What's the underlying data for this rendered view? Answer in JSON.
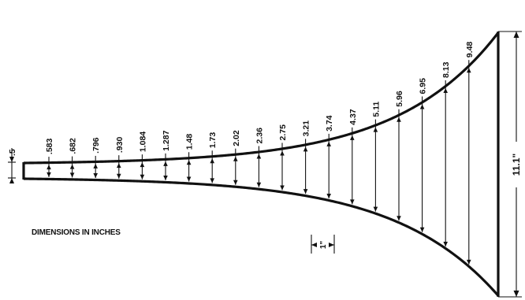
{
  "diagram": {
    "unit_note": "DIMENSIONS IN INCHES",
    "throat_dimension": ".5",
    "mouth_dimension": "11.1\"",
    "spacing_label": "1\"",
    "dimensions": [
      ".583",
      ".682",
      ".796",
      ".930",
      "1.084",
      "1.287",
      "1.48",
      "1.73",
      "2.02",
      "2.36",
      "2.75",
      "3.21",
      "3.74",
      "4.37",
      "5.11",
      "5.96",
      "6.95",
      "8.13",
      "9.48"
    ]
  }
}
